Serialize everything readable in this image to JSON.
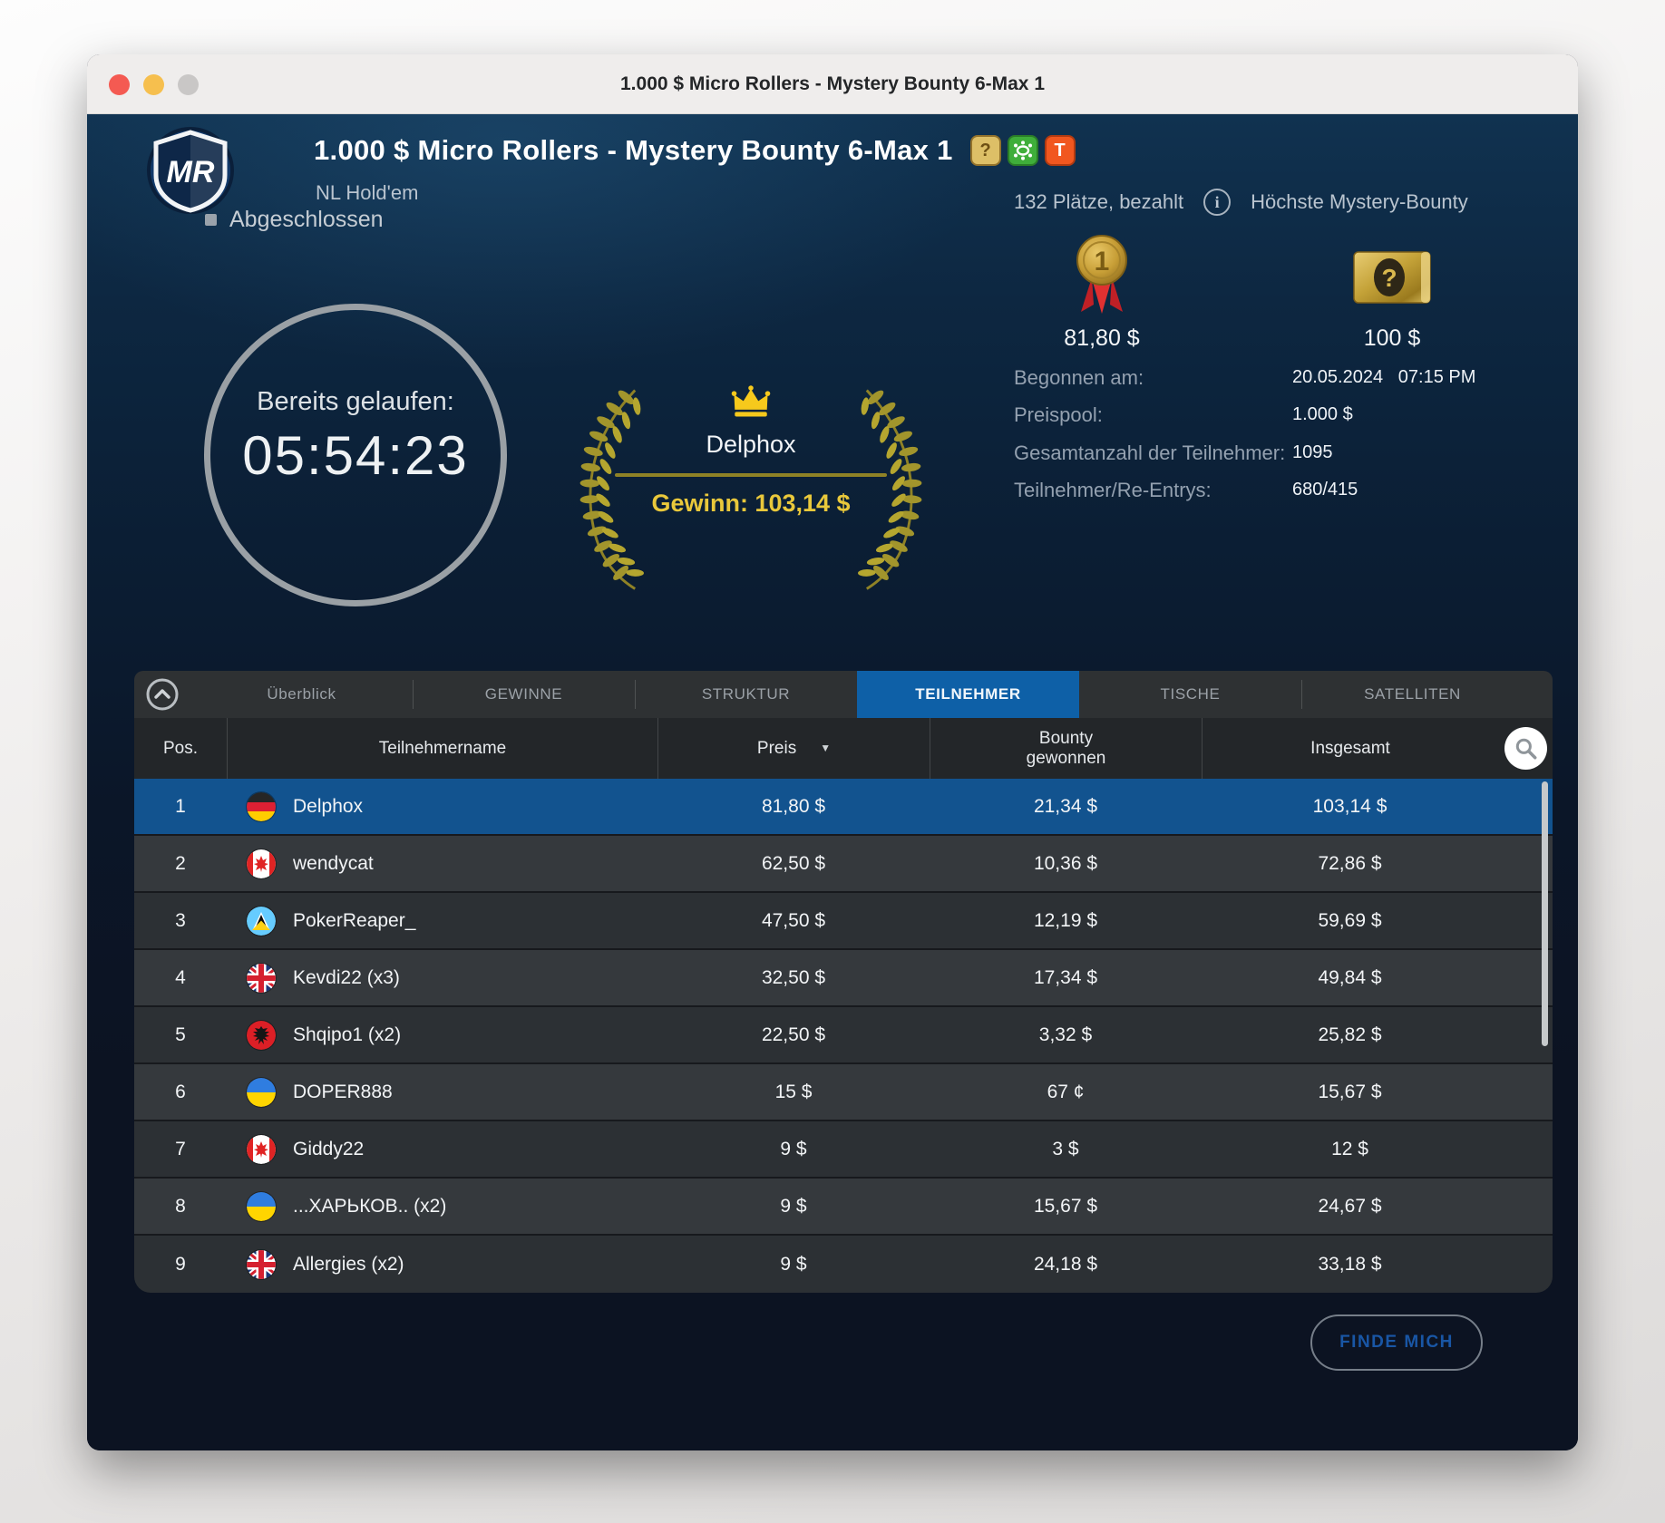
{
  "colors": {
    "accent_tab_blue": "#0e60a7",
    "selected_row_blue": "#12538f",
    "crown_gold": "#f6c91c",
    "win_yellow": "#e9c83b",
    "laurel_olive": "#9c8f2b",
    "find_me_text_blue": "#1956a5"
  },
  "icons": {
    "mystery_badge_glyph": "?",
    "turbo_badge_glyph": "T",
    "sort_arrow": "▼",
    "info_glyph": "i",
    "logo_text": "MR"
  },
  "window": {
    "title": "1.000 $ Micro Rollers - Mystery Bounty 6-Max 1"
  },
  "header": {
    "title": "1.000 $ Micro Rollers - Mystery Bounty 6-Max 1",
    "game_type": "NL Hold'em",
    "status": "Abgeschlossen",
    "places_paid": "132 Plätze, bezahlt",
    "highest_bounty_label": "Höchste Mystery-Bounty",
    "first_prize": "81,80 $",
    "highest_bounty_value": "100 $",
    "elapsed_label": "Bereits gelaufen:",
    "elapsed_time": "05:54:23",
    "winner": {
      "name": "Delphox",
      "win_text": "Gewinn: 103,14 $"
    },
    "details": [
      {
        "label": "Begonnen am:",
        "value": "20.05.2024   07:15 PM"
      },
      {
        "label": "Preispool:",
        "value": "1.000 $"
      },
      {
        "label": "Gesamtanzahl der Teilnehmer:",
        "value": "1095"
      },
      {
        "label": "Teilnehmer/Re-Entrys:",
        "value": "680/415"
      }
    ]
  },
  "tabs": [
    {
      "label": "Überblick"
    },
    {
      "label": "GEWINNE"
    },
    {
      "label": "STRUKTUR"
    },
    {
      "label": "TEILNEHMER",
      "active": true
    },
    {
      "label": "TISCHE"
    },
    {
      "label": "SATELLITEN"
    }
  ],
  "table": {
    "columns": {
      "pos": "Pos.",
      "name": "Teilnehmername",
      "prize": "Preis",
      "bounty": "Bounty gewonnen",
      "total": "Insgesamt"
    },
    "rows": [
      {
        "pos": "1",
        "flag": "germany",
        "name": "Delphox",
        "prize": "81,80 $",
        "bounty": "21,34 $",
        "total": "103,14 $"
      },
      {
        "pos": "2",
        "flag": "canada",
        "name": "wendycat",
        "prize": "62,50 $",
        "bounty": "10,36 $",
        "total": "72,86 $"
      },
      {
        "pos": "3",
        "flag": "saint-lucia",
        "name": "PokerReaper_",
        "prize": "47,50 $",
        "bounty": "12,19 $",
        "total": "59,69 $"
      },
      {
        "pos": "4",
        "flag": "uk",
        "name": "Kevdi22 (x3)",
        "prize": "32,50 $",
        "bounty": "17,34 $",
        "total": "49,84 $"
      },
      {
        "pos": "5",
        "flag": "albania",
        "name": "Shqipo1 (x2)",
        "prize": "22,50 $",
        "bounty": "3,32 $",
        "total": "25,82 $"
      },
      {
        "pos": "6",
        "flag": "ukraine",
        "name": "DOPER888",
        "prize": "15 $",
        "bounty": "67 ¢",
        "total": "15,67 $"
      },
      {
        "pos": "7",
        "flag": "canada",
        "name": "Giddy22",
        "prize": "9 $",
        "bounty": "3 $",
        "total": "12 $"
      },
      {
        "pos": "8",
        "flag": "ukraine",
        "name": "...ХАРЬКОВ.. (x2)",
        "prize": "9 $",
        "bounty": "15,67 $",
        "total": "24,67 $"
      },
      {
        "pos": "9",
        "flag": "uk",
        "name": "Allergies (x2)",
        "prize": "9 $",
        "bounty": "24,18 $",
        "total": "33,18 $"
      }
    ]
  },
  "footer": {
    "find_me_label": "FINDE MICH"
  }
}
